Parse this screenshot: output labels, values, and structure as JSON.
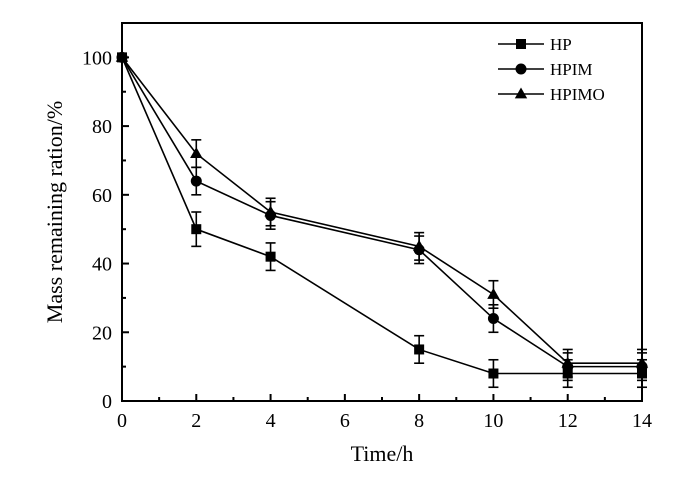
{
  "chart_data": {
    "type": "line",
    "title": "",
    "xlabel": "Time/h",
    "ylabel": "Mass remaining ration/%",
    "xlim": [
      0,
      14
    ],
    "ylim": [
      0,
      110
    ],
    "xticks": [
      0,
      2,
      4,
      6,
      8,
      10,
      12,
      14
    ],
    "yticks": [
      0,
      20,
      40,
      60,
      80,
      100
    ],
    "grid": false,
    "legend": "top-right",
    "x": [
      0,
      2,
      4,
      8,
      10,
      12,
      14
    ],
    "series": [
      {
        "name": "HP",
        "marker": "square",
        "values": [
          100,
          50,
          42,
          15,
          8,
          8,
          8
        ],
        "errors": [
          1,
          5,
          4,
          4,
          4,
          4,
          4
        ]
      },
      {
        "name": "HPIM",
        "marker": "circle",
        "values": [
          100,
          64,
          54,
          44,
          24,
          10,
          10
        ],
        "errors": [
          1,
          4,
          4,
          4,
          4,
          4,
          4
        ]
      },
      {
        "name": "HPIMO",
        "marker": "triangle",
        "values": [
          100,
          72,
          55,
          45,
          31,
          11,
          11
        ],
        "errors": [
          1,
          4,
          4,
          4,
          4,
          4,
          4
        ]
      }
    ]
  }
}
